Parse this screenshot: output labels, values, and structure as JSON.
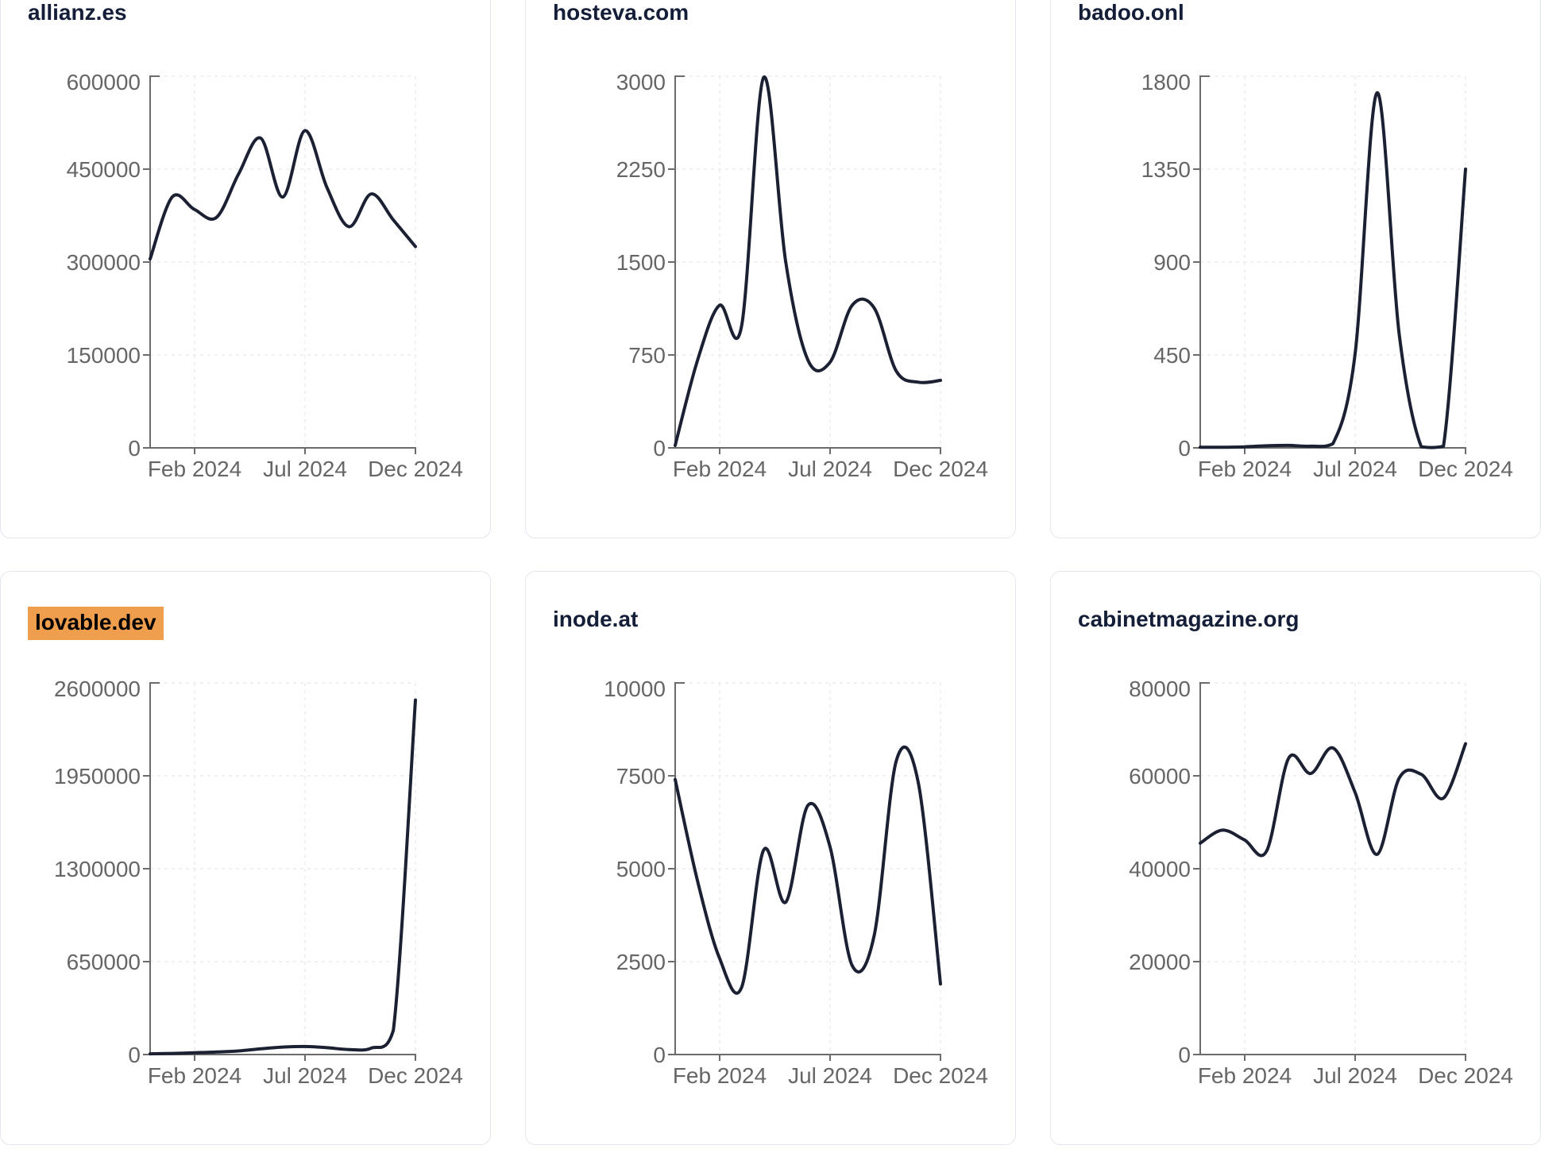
{
  "colors": {
    "background": "#ffffff",
    "card_border": "#e3e8ef",
    "title_text": "#141e38",
    "highlight_background": "#ef9e4d",
    "highlight_text": "#000000",
    "line": "#1b2133",
    "axis": "#6b6b6b",
    "tick_label": "#666666",
    "gridline": "#eaecef"
  },
  "x_axis_tick_labels": [
    "Feb 2024",
    "Jul 2024",
    "Dec 2024"
  ],
  "chart_data": [
    {
      "type": "line",
      "title": "allianz.es",
      "highlighted": false,
      "x_range": "Jan 2024 - Dec 2024",
      "x_samples": "13 evenly spaced samples across 2024",
      "x_ticks": [
        "Feb 2024",
        "Jul 2024",
        "Dec 2024"
      ],
      "values": [
        305000,
        405000,
        385000,
        372000,
        442000,
        500000,
        405000,
        512000,
        420000,
        357000,
        410000,
        368000,
        325000
      ],
      "y_ticks": [
        0,
        150000,
        300000,
        450000,
        600000
      ],
      "ylim": [
        0,
        600000
      ],
      "grid": "dashed"
    },
    {
      "type": "line",
      "title": "hosteva.com",
      "highlighted": false,
      "x_range": "Jan 2024 - Dec 2024",
      "x_samples": "13 evenly spaced samples across 2024",
      "x_ticks": [
        "Feb 2024",
        "Jul 2024",
        "Dec 2024"
      ],
      "values": [
        20,
        700,
        1150,
        980,
        2990,
        1500,
        710,
        690,
        1150,
        1130,
        620,
        530,
        545
      ],
      "y_ticks": [
        0,
        750,
        1500,
        2250,
        3000
      ],
      "ylim": [
        0,
        3000
      ],
      "grid": "dashed"
    },
    {
      "type": "line",
      "title": "badoo.onl",
      "highlighted": false,
      "x_range": "Jan 2024 - Dec 2024",
      "x_samples": "13 evenly spaced samples across 2024",
      "x_ticks": [
        "Feb 2024",
        "Jul 2024",
        "Dec 2024"
      ],
      "values": [
        3,
        3,
        5,
        10,
        12,
        8,
        20,
        450,
        1720,
        550,
        5,
        8,
        1350
      ],
      "y_ticks": [
        0,
        450,
        900,
        1350,
        1800
      ],
      "ylim": [
        0,
        1800
      ],
      "grid": "dashed"
    },
    {
      "type": "line",
      "title": "lovable.dev",
      "highlighted": true,
      "x_range": "Jan 2024 - Dec 2024",
      "x_samples": "13 evenly spaced samples across 2024",
      "x_ticks": [
        "Feb 2024",
        "Jul 2024",
        "Dec 2024"
      ],
      "values": [
        5000,
        8000,
        12000,
        18000,
        25000,
        40000,
        52000,
        56000,
        48000,
        35000,
        45000,
        170000,
        2480000
      ],
      "y_ticks": [
        0,
        650000,
        1300000,
        1950000,
        2600000
      ],
      "ylim": [
        0,
        2600000
      ],
      "grid": "dashed"
    },
    {
      "type": "line",
      "title": "inode.at",
      "highlighted": false,
      "x_range": "Jan 2024 - Dec 2024",
      "x_samples": "13 evenly spaced samples across 2024",
      "x_ticks": [
        "Feb 2024",
        "Jul 2024",
        "Dec 2024"
      ],
      "values": [
        7400,
        4700,
        2600,
        1800,
        5500,
        4100,
        6700,
        5600,
        2400,
        3200,
        7900,
        7300,
        1900
      ],
      "y_ticks": [
        0,
        2500,
        5000,
        7500,
        10000
      ],
      "ylim": [
        0,
        10000
      ],
      "grid": "dashed"
    },
    {
      "type": "line",
      "title": "cabinetmagazine.org",
      "highlighted": false,
      "x_range": "Jan 2024 - Dec 2024",
      "x_samples": "13 evenly spaced samples across 2024",
      "x_ticks": [
        "Feb 2024",
        "Jul 2024",
        "Dec 2024"
      ],
      "values": [
        45500,
        48300,
        46200,
        43800,
        63800,
        60500,
        66000,
        56500,
        43100,
        59500,
        60300,
        55200,
        66900
      ],
      "y_ticks": [
        0,
        20000,
        40000,
        60000,
        80000
      ],
      "ylim": [
        0,
        80000
      ],
      "grid": "dashed"
    }
  ]
}
